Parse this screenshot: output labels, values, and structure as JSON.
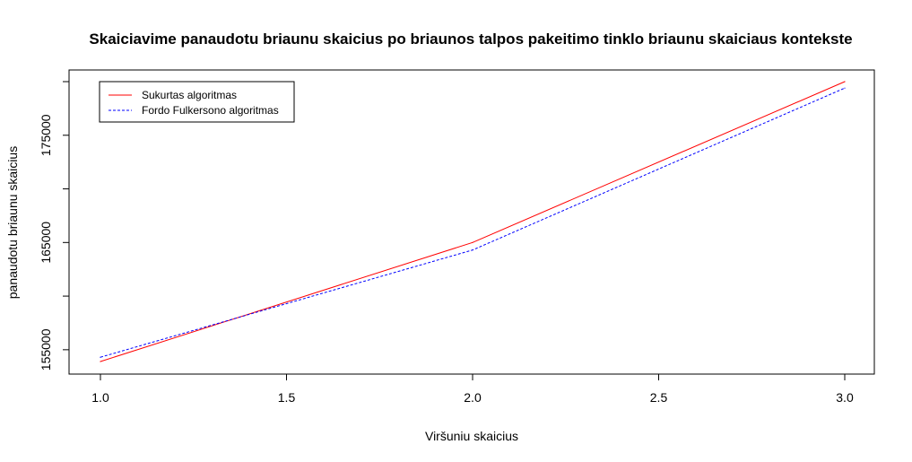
{
  "chart_data": {
    "type": "line",
    "title": "Skaiciavime panaudotu briaunu skaicius po briaunos talpos pakeitimo tinklo briaunu skaiciaus kontekste",
    "xlabel": "Viršuniu skaicius",
    "ylabel": "panaudotu briaunu skaicius",
    "x": [
      1.0,
      2.0,
      3.0
    ],
    "xlim": [
      1.0,
      3.0
    ],
    "ylim": [
      153900,
      180000
    ],
    "x_ticks": [
      1.0,
      1.5,
      2.0,
      2.5,
      3.0
    ],
    "x_tick_labels": [
      "1.0",
      "1.5",
      "2.0",
      "2.5",
      "3.0"
    ],
    "y_ticks": [
      155000,
      160000,
      165000,
      170000,
      175000,
      180000
    ],
    "y_tick_labels": [
      "155000",
      "165000",
      "175000"
    ],
    "y_labeled_ticks": [
      155000,
      165000,
      175000
    ],
    "grid": false,
    "legend_position": "top-left",
    "series": [
      {
        "name": "Sukurtas algoritmas",
        "values": [
          153900,
          165000,
          180000
        ],
        "color": "#ff0000",
        "dash": "solid"
      },
      {
        "name": "Fordo Fulkersono algoritmas",
        "values": [
          154300,
          164300,
          179400
        ],
        "color": "#0000ff",
        "dash": "dashed"
      }
    ]
  }
}
